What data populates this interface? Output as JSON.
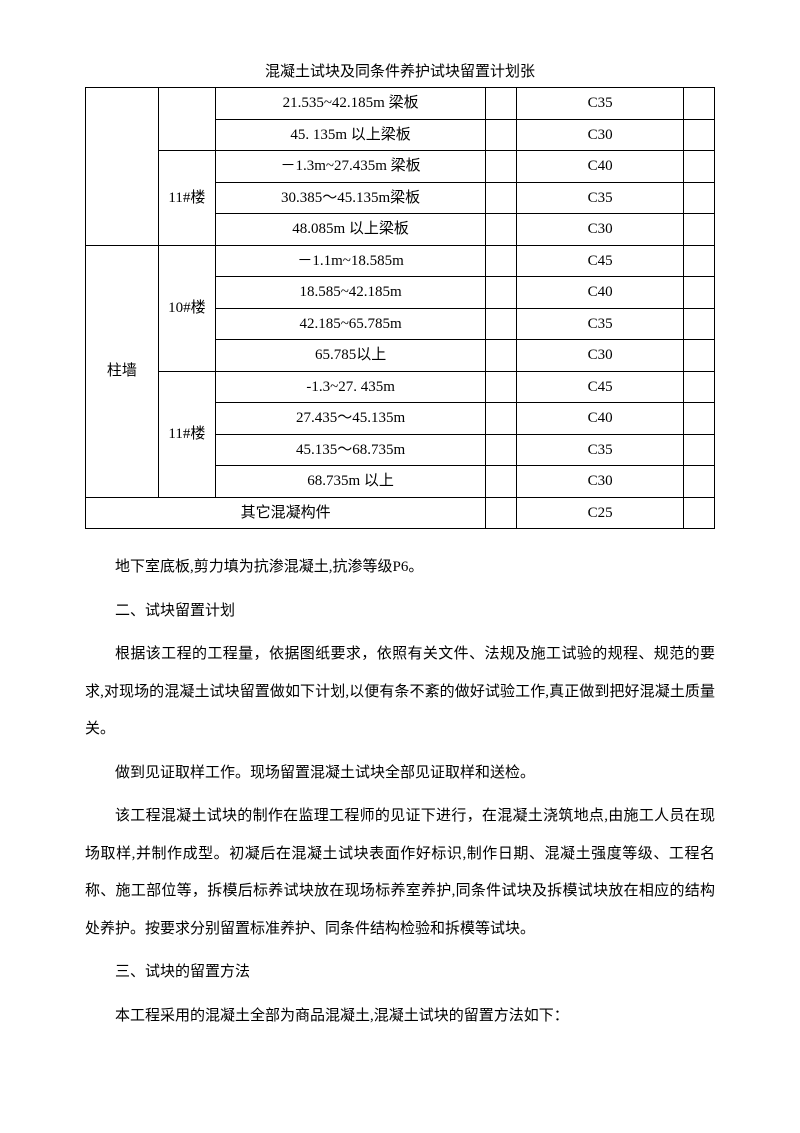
{
  "title": "混凝土试块及同条件养护试块留置计划张",
  "table": {
    "rows": [
      {
        "category": "",
        "building": "",
        "range": "21.535~42.185m 梁板",
        "grade": "C35"
      },
      {
        "range": "45. 135m 以上梁板",
        "grade": "C30"
      },
      {
        "building": "11#楼",
        "range": "－1.3m~27.435m 梁板",
        "grade": "C40"
      },
      {
        "range": "30.385～45.135m梁板",
        "grade": "C35"
      },
      {
        "range": "48.085m 以上梁板",
        "grade": "C30"
      },
      {
        "category": "柱墙",
        "building": "10#楼",
        "range": "－1.1m~18.585m",
        "grade": "C45"
      },
      {
        "range": "18.585~42.185m",
        "grade": "C40"
      },
      {
        "range": "42.185~65.785m",
        "grade": "C35"
      },
      {
        "range": "65.785以上",
        "grade": "C30"
      },
      {
        "building": "11#楼",
        "range": "-1.3~27. 435m",
        "grade": "C45"
      },
      {
        "range": "27.435～45.135m",
        "grade": "C40"
      },
      {
        "range": "45.135～68.735m",
        "grade": "C35"
      },
      {
        "range": "68.735m 以上",
        "grade": "C30"
      },
      {
        "other": "其它混凝构件",
        "grade": "C25"
      }
    ]
  },
  "paragraphs": [
    "地下室底板,剪力填为抗渗混凝土,抗渗等级P6。",
    "二、试块留置计划",
    "根据该工程的工程量，依据图纸要求，依照有关文件、法规及施工试验的规程、规范的要求,对现场的混凝土试块留置做如下计划,以便有条不紊的做好试验工作,真正做到把好混凝土质量关。",
    "做到见证取样工作。现场留置混凝土试块全部见证取样和送检。",
    "该工程混凝土试块的制作在监理工程师的见证下进行，在混凝土浇筑地点,由施工人员在现场取样,并制作成型。初凝后在混凝土试块表面作好标识,制作日期、混凝土强度等级、工程名称、施工部位等，拆模后标养试块放在现场标养室养护,同条件试块及拆模试块放在相应的结构处养护。按要求分别留置标准养护、同条件结构检验和拆模等试块。",
    "三、试块的留置方法",
    "本工程采用的混凝土全部为商品混凝土,混凝土试块的留置方法如下："
  ]
}
